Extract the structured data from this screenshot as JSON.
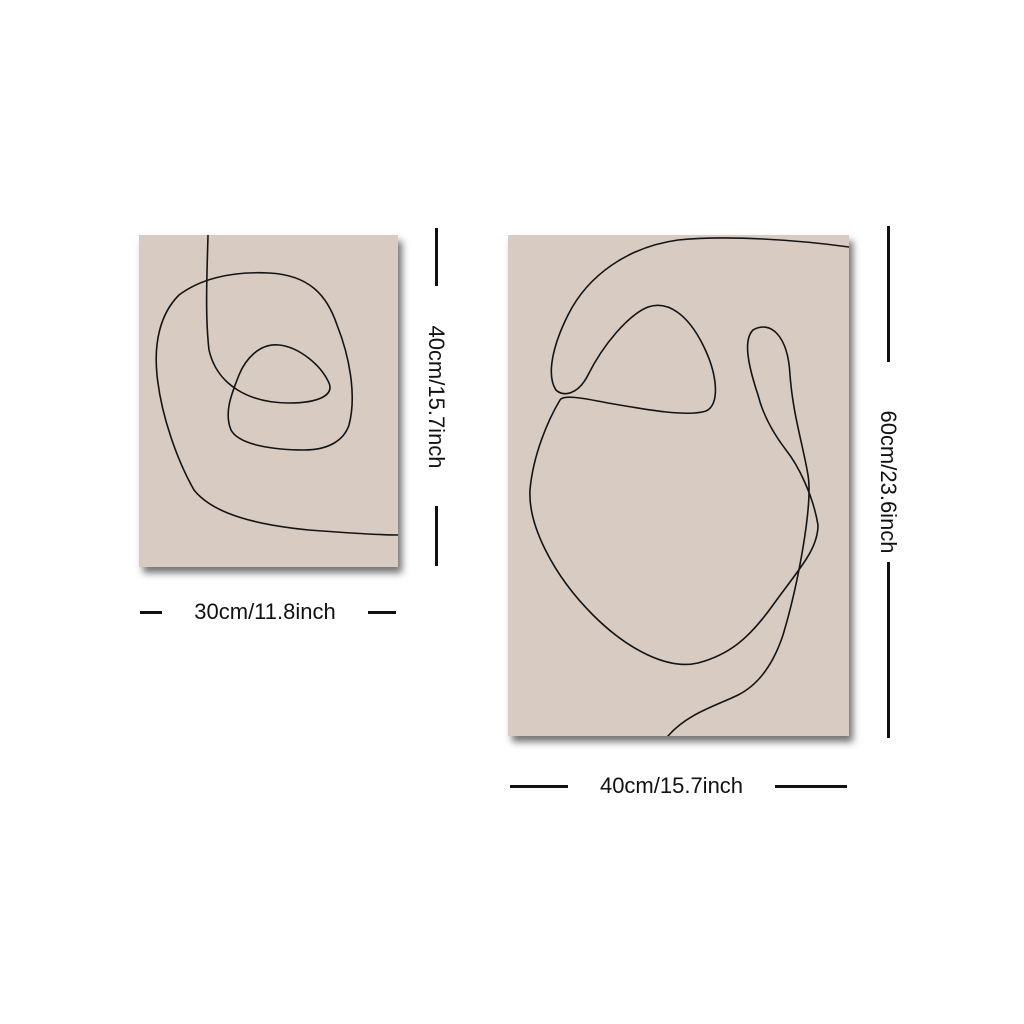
{
  "colors": {
    "background": "#ffffff",
    "canvas": "#d8cbc2",
    "line_art": "#141414",
    "dimension_text": "#111111"
  },
  "small_canvas": {
    "width_label": "30cm/11.8inch",
    "height_label": "40cm/15.7inch"
  },
  "large_canvas": {
    "width_label": "40cm/15.7inch",
    "height_label": "60cm/23.6inch"
  }
}
